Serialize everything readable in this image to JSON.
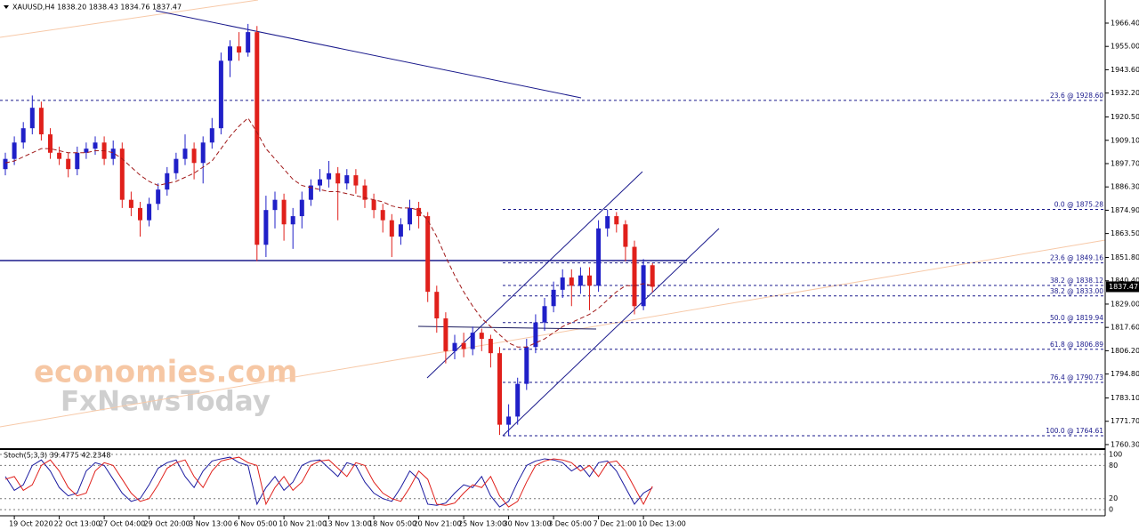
{
  "chart_data": [
    {
      "type": "candlestick",
      "title": "XAUUSD,H4 1838.20 1838.43 1834.76 1837.47",
      "watermark": [
        "economies.com",
        "FxNewsToday"
      ],
      "up_color": "#2020c8",
      "down_color": "#e0201b",
      "categories": [
        null,
        "19 Oct 2020",
        null,
        null,
        null,
        null,
        "22 Oct 13:00",
        null,
        null,
        null,
        null,
        "27 Oct 04:00",
        null,
        null,
        null,
        null,
        "29 Oct 20:00",
        null,
        null,
        null,
        null,
        "3 Nov 13:00",
        null,
        null,
        null,
        null,
        "6 Nov 05:00",
        null,
        null,
        null,
        null,
        "10 Nov 21:00",
        null,
        null,
        null,
        null,
        "13 Nov 13:00",
        null,
        null,
        null,
        null,
        "18 Nov 05:00",
        null,
        null,
        null,
        null,
        "20 Nov 21:00",
        null,
        null,
        null,
        null,
        "25 Nov 13:00",
        null,
        null,
        null,
        null,
        "30 Nov 13:00",
        null,
        null,
        null,
        null,
        "3 Dec 05:00",
        null,
        null,
        null,
        null,
        "7 Dec 21:00",
        null,
        null,
        null,
        null,
        "10 Dec 13:00",
        null
      ],
      "open": [
        1895,
        1900,
        1908,
        1915,
        1925,
        1912,
        1903,
        1900,
        1895,
        1903,
        1905,
        1908,
        1900,
        1905,
        1880,
        1876,
        1870,
        1878,
        1885,
        1893,
        1900,
        1905,
        1898,
        1908,
        1915,
        1948,
        1955,
        1952,
        1962,
        1858,
        1875,
        1880,
        1868,
        1872,
        1880,
        1887,
        1890,
        1893,
        1888,
        1892,
        1887,
        1880,
        1875,
        1870,
        1862,
        1868,
        1876,
        1872,
        1835,
        1822,
        1806,
        1810,
        1807,
        1815,
        1812,
        1805,
        1770,
        1774,
        1790,
        1808,
        1820,
        1828,
        1836,
        1842,
        1838,
        1843,
        1838,
        1866,
        1872,
        1868,
        1857,
        1828,
        1848
      ],
      "high": [
        1903,
        1911,
        1918,
        1931,
        1928,
        1915,
        1906,
        1903,
        1906,
        1908,
        1911,
        1911,
        1909,
        1908,
        1884,
        1879,
        1881,
        1888,
        1896,
        1903,
        1912,
        1908,
        1911,
        1920,
        1952,
        1958,
        1962,
        1966,
        1965,
        1882,
        1884,
        1883,
        1876,
        1884,
        1890,
        1895,
        1899,
        1896,
        1895,
        1895,
        1890,
        1883,
        1878,
        1873,
        1871,
        1880,
        1879,
        1874,
        1838,
        1825,
        1814,
        1815,
        1818,
        1817,
        1814,
        1808,
        1780,
        1793,
        1812,
        1824,
        1832,
        1840,
        1846,
        1846,
        1847,
        1847,
        1870,
        1875.28,
        1874,
        1870,
        1860,
        1851,
        1849
      ],
      "low": [
        1892,
        1897,
        1905,
        1912,
        1909,
        1900,
        1897,
        1891,
        1892,
        1900,
        1902,
        1897,
        1897,
        1876,
        1872,
        1862,
        1867,
        1875,
        1882,
        1890,
        1897,
        1890,
        1888,
        1905,
        1912,
        1940,
        1948,
        1950,
        1850,
        1852,
        1866,
        1860,
        1856,
        1866,
        1877,
        1884,
        1886,
        1870,
        1885,
        1883,
        1876,
        1871,
        1864,
        1852,
        1858,
        1865,
        1866,
        1830,
        1815,
        1800,
        1802,
        1803,
        1804,
        1806,
        1798,
        1765,
        1764.61,
        1770,
        1787,
        1805,
        1816,
        1825,
        1832,
        1828,
        1834,
        1826,
        1835,
        1862,
        1864,
        1850,
        1824,
        1826,
        1834.76
      ],
      "close": [
        1900,
        1908,
        1915,
        1925,
        1912,
        1903,
        1900,
        1895,
        1903,
        1905,
        1908,
        1900,
        1905,
        1880,
        1876,
        1870,
        1878,
        1885,
        1893,
        1900,
        1905,
        1898,
        1908,
        1915,
        1948,
        1955,
        1952,
        1962,
        1858,
        1875,
        1880,
        1868,
        1872,
        1880,
        1887,
        1890,
        1893,
        1888,
        1892,
        1887,
        1880,
        1875,
        1870,
        1862,
        1868,
        1876,
        1872,
        1835,
        1822,
        1806,
        1810,
        1807,
        1815,
        1812,
        1805,
        1770,
        1774,
        1790,
        1808,
        1820,
        1828,
        1836,
        1842,
        1838,
        1843,
        1838,
        1866,
        1872,
        1868,
        1857,
        1828,
        1848,
        1837.47
      ],
      "ma": {
        "color": "#a01818",
        "values": [
          1898,
          1899,
          1901,
          1903,
          1905,
          1905,
          1904,
          1903,
          1903,
          1903,
          1904,
          1904,
          1903,
          1900,
          1896,
          1892,
          1889,
          1887,
          1888,
          1889,
          1891,
          1893,
          1896,
          1899,
          1905,
          1911,
          1916,
          1920,
          1913,
          1905,
          1900,
          1895,
          1890,
          1887,
          1886,
          1885,
          1884,
          1884,
          1883,
          1882,
          1881,
          1880,
          1879,
          1877,
          1876,
          1876,
          1875,
          1870,
          1862,
          1852,
          1843,
          1835,
          1828,
          1822,
          1818,
          1814,
          1810,
          1808,
          1808,
          1810,
          1812,
          1815,
          1818,
          1820,
          1822,
          1824,
          1827,
          1831,
          1835,
          1838,
          1838,
          1839,
          1838
        ]
      },
      "last_price": 1837.47,
      "ylim": [
        1758.1,
        1977.7
      ],
      "yticks": [
        {
          "value": 1966.4,
          "label": "1966.40"
        },
        {
          "value": 1955,
          "label": "1955.00"
        },
        {
          "value": 1943.6,
          "label": "1943.60"
        },
        {
          "value": 1932.2,
          "label": "1932.20"
        },
        {
          "value": 1920.5,
          "label": "1920.50"
        },
        {
          "value": 1909.1,
          "label": "1909.10"
        },
        {
          "value": 1897.7,
          "label": "1897.70"
        },
        {
          "value": 1886.3,
          "label": "1886.30"
        },
        {
          "value": 1874.9,
          "label": "1874.90"
        },
        {
          "value": 1863.5,
          "label": "1863.50"
        },
        {
          "value": 1851.8,
          "label": "1851.80"
        },
        {
          "value": 1840.4,
          "label": "1840.40"
        },
        {
          "value": 1829,
          "label": "1829.00"
        },
        {
          "value": 1817.6,
          "label": "1817.60"
        },
        {
          "value": 1806.2,
          "label": "1806.20"
        },
        {
          "value": 1794.8,
          "label": "1794.80"
        },
        {
          "value": 1783.1,
          "label": "1783.10"
        },
        {
          "value": 1771.7,
          "label": "1771.70"
        },
        {
          "value": 1760.3,
          "label": "1760.30"
        }
      ],
      "levels": [
        {
          "value": 1928.6,
          "label": "23.6 @ 1928.60"
        },
        {
          "value": 1875.28,
          "label": "0.0 @ 1875.28"
        },
        {
          "value": 1849.16,
          "label": "23.6 @ 1849.16"
        },
        {
          "value": 1838.12,
          "label": "38.2 @ 1838.12"
        },
        {
          "value": 1833,
          "label": "38.2 @ 1833.00"
        },
        {
          "value": 1819.94,
          "label": "50.0 @ 1819.94"
        },
        {
          "value": 1806.89,
          "label": "61.8 @ 1806.89"
        },
        {
          "value": 1790.73,
          "label": "76.4 @ 1790.73"
        },
        {
          "value": 1764.61,
          "label": "100.0 @ 1764.61"
        }
      ],
      "level_color": "#1a1a8c"
    },
    {
      "type": "line",
      "title": "Stoch(5,3,3) 39.4775 42.2348",
      "series": [
        {
          "color": "#1a1aa0",
          "values": [
            60,
            35,
            45,
            80,
            90,
            70,
            40,
            25,
            30,
            70,
            85,
            80,
            55,
            30,
            15,
            20,
            45,
            75,
            85,
            90,
            60,
            40,
            70,
            88,
            92,
            95,
            85,
            80,
            10,
            40,
            60,
            35,
            50,
            80,
            88,
            90,
            75,
            60,
            85,
            80,
            50,
            30,
            20,
            15,
            40,
            70,
            55,
            10,
            8,
            12,
            30,
            45,
            40,
            60,
            25,
            5,
            15,
            50,
            80,
            88,
            92,
            90,
            85,
            70,
            80,
            60,
            85,
            88,
            70,
            40,
            10,
            30,
            39.4775
          ]
        },
        {
          "color": "#e0201b",
          "values": [
            55,
            60,
            35,
            45,
            80,
            90,
            70,
            40,
            25,
            30,
            70,
            85,
            80,
            55,
            30,
            15,
            20,
            45,
            75,
            85,
            90,
            60,
            40,
            70,
            88,
            92,
            95,
            85,
            80,
            10,
            40,
            60,
            35,
            50,
            80,
            88,
            90,
            75,
            60,
            85,
            80,
            50,
            30,
            20,
            15,
            40,
            70,
            55,
            10,
            8,
            12,
            30,
            45,
            40,
            60,
            25,
            5,
            15,
            50,
            80,
            88,
            92,
            90,
            85,
            70,
            80,
            60,
            85,
            88,
            70,
            40,
            10,
            42.2348
          ]
        }
      ],
      "ylim": [
        -11,
        108
      ],
      "yticks": [
        100,
        80,
        20,
        0
      ]
    }
  ]
}
